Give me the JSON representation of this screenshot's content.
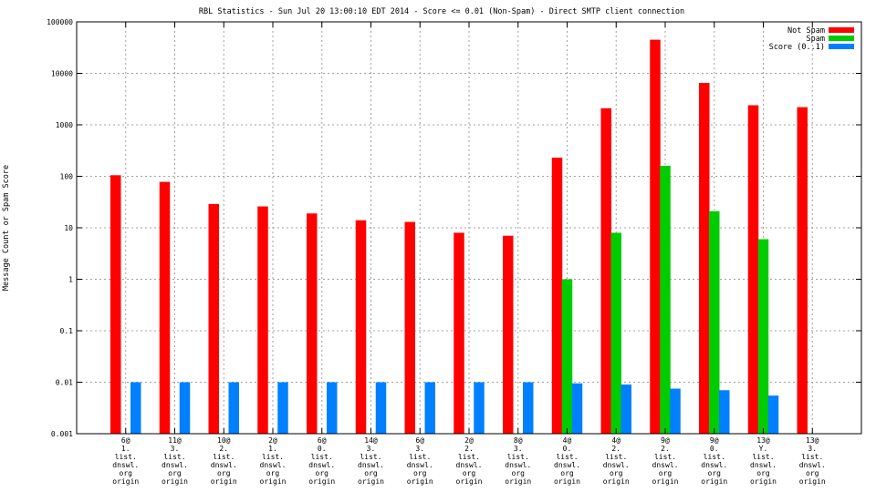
{
  "chart_data": {
    "type": "bar",
    "title": "RBL Statistics - Sun Jul 20 13:00:10 EDT 2014 - Score <= 0.01 (Non-Spam) - Direct SMTP client connection",
    "xlabel": "",
    "ylabel": "Message Count or Spam Score",
    "y_scale": "log",
    "ylim": [
      0.001,
      100000
    ],
    "y_ticks": [
      "0.001",
      "0.01",
      "0.1",
      "1",
      "10",
      "100",
      "1000",
      "10000",
      "100000"
    ],
    "grid": true,
    "legend_position": "top-right",
    "categories": [
      [
        "6@",
        "1.",
        "list.",
        "dnswl.",
        "org",
        "origin"
      ],
      [
        "11@",
        "3.",
        "list.",
        "dnswl.",
        "org",
        "origin"
      ],
      [
        "10@",
        "2.",
        "list.",
        "dnswl.",
        "org",
        "origin"
      ],
      [
        "2@",
        "1.",
        "list.",
        "dnswl.",
        "org",
        "origin"
      ],
      [
        "6@",
        "0.",
        "list.",
        "dnswl.",
        "org",
        "origin"
      ],
      [
        "14@",
        "3.",
        "list.",
        "dnswl.",
        "org",
        "origin"
      ],
      [
        "6@",
        "3.",
        "list.",
        "dnswl.",
        "org",
        "origin"
      ],
      [
        "2@",
        "2.",
        "list.",
        "dnswl.",
        "org",
        "origin"
      ],
      [
        "8@",
        "3.",
        "list.",
        "dnswl.",
        "org",
        "origin"
      ],
      [
        "4@",
        "0.",
        "list.",
        "dnswl.",
        "org",
        "origin"
      ],
      [
        "4@",
        "2.",
        "list.",
        "dnswl.",
        "org",
        "origin"
      ],
      [
        "9@",
        "2.",
        "list.",
        "dnswl.",
        "org",
        "origin"
      ],
      [
        "9@",
        "0.",
        "list.",
        "dnswl.",
        "org",
        "origin"
      ],
      [
        "13@",
        "Y.",
        "list.",
        "dnswl.",
        "org",
        "origin"
      ],
      [
        "13@",
        "3.",
        "list.",
        "dnswl.",
        "org",
        "origin"
      ]
    ],
    "series": [
      {
        "name": "Not Spam",
        "color": "#ff0000",
        "values": [
          105,
          78,
          29,
          26,
          19,
          14,
          13,
          8,
          7,
          230,
          2100,
          45000,
          6500,
          2400,
          2200
        ]
      },
      {
        "name": "Spam",
        "color": "#00cc00",
        "values": [
          null,
          null,
          null,
          null,
          null,
          null,
          null,
          null,
          null,
          1,
          8,
          160,
          21,
          6,
          null
        ]
      },
      {
        "name": "Score (0..1)",
        "color": "#0080ff",
        "values": [
          0.01,
          0.01,
          0.01,
          0.01,
          0.01,
          0.01,
          0.01,
          0.01,
          0.01,
          0.0095,
          0.009,
          0.0075,
          0.007,
          0.0055,
          null
        ]
      }
    ]
  }
}
